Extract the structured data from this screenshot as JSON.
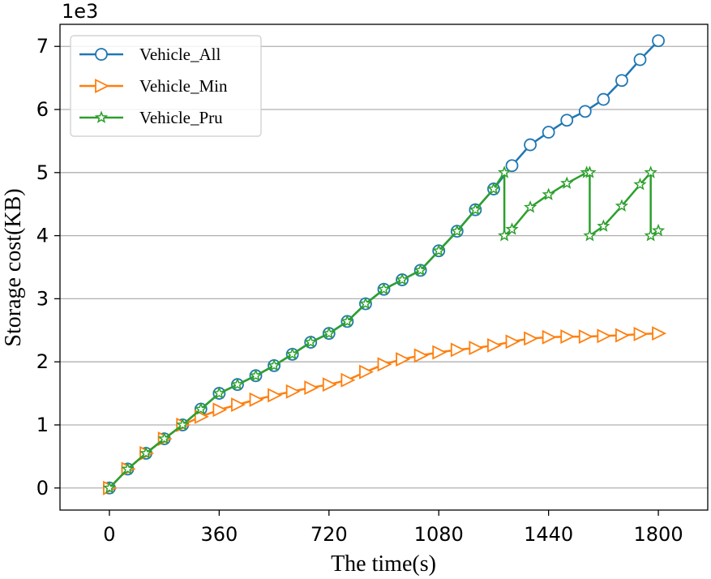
{
  "chart_data": {
    "type": "line",
    "title": "",
    "xlabel": "The time(s)",
    "ylabel": "Storage cost(KB)",
    "y_offset_label": "1e3",
    "xlim": [
      -162,
      1962
    ],
    "ylim": [
      -0.35,
      7.35
    ],
    "x_ticks": [
      0,
      360,
      720,
      1080,
      1440,
      1800
    ],
    "x_tick_labels": [
      "0",
      "360",
      "720",
      "1080",
      "1440",
      "1800"
    ],
    "y_ticks": [
      0,
      1,
      2,
      3,
      4,
      5,
      6,
      7
    ],
    "y_tick_labels": [
      "0",
      "1",
      "2",
      "3",
      "4",
      "5",
      "6",
      "7"
    ],
    "grid": "horizontal",
    "legend_position": "top-left",
    "series": [
      {
        "name": "Vehicle_All",
        "color": "#1f77b4",
        "marker": "circle",
        "x": [
          0,
          60,
          120,
          180,
          240,
          300,
          360,
          420,
          480,
          540,
          600,
          660,
          720,
          780,
          840,
          900,
          960,
          1020,
          1080,
          1140,
          1200,
          1260,
          1320,
          1380,
          1440,
          1500,
          1560,
          1620,
          1680,
          1740,
          1800
        ],
        "y": [
          0,
          0.3,
          0.55,
          0.78,
          1.0,
          1.25,
          1.5,
          1.64,
          1.78,
          1.94,
          2.12,
          2.31,
          2.45,
          2.64,
          2.92,
          3.15,
          3.3,
          3.45,
          3.76,
          4.07,
          4.41,
          4.74,
          5.11,
          5.44,
          5.64,
          5.83,
          5.97,
          6.16,
          6.46,
          6.79,
          7.09
        ]
      },
      {
        "name": "Vehicle_Min",
        "color": "#ff7f0e",
        "marker": "triangle-right",
        "x": [
          0,
          60,
          120,
          180,
          240,
          300,
          360,
          420,
          480,
          540,
          600,
          660,
          720,
          780,
          840,
          900,
          960,
          1020,
          1080,
          1140,
          1200,
          1260,
          1320,
          1380,
          1440,
          1500,
          1560,
          1620,
          1680,
          1740,
          1800
        ],
        "y": [
          0,
          0.3,
          0.55,
          0.78,
          1.0,
          1.13,
          1.24,
          1.32,
          1.4,
          1.47,
          1.53,
          1.59,
          1.64,
          1.71,
          1.84,
          1.96,
          2.04,
          2.1,
          2.15,
          2.19,
          2.22,
          2.26,
          2.32,
          2.37,
          2.39,
          2.4,
          2.4,
          2.41,
          2.42,
          2.44,
          2.45
        ]
      },
      {
        "name": "Vehicle_Pru",
        "color": "#2ca02c",
        "marker": "star",
        "x": [
          0,
          60,
          120,
          180,
          240,
          300,
          360,
          420,
          480,
          540,
          600,
          660,
          720,
          780,
          840,
          900,
          960,
          1020,
          1080,
          1140,
          1200,
          1260,
          1295,
          1295,
          1320,
          1380,
          1440,
          1500,
          1565,
          1575,
          1575,
          1620,
          1680,
          1740,
          1775,
          1775,
          1800
        ],
        "y": [
          0,
          0.3,
          0.55,
          0.78,
          1.0,
          1.25,
          1.5,
          1.64,
          1.78,
          1.94,
          2.12,
          2.31,
          2.45,
          2.64,
          2.92,
          3.15,
          3.3,
          3.45,
          3.76,
          4.07,
          4.41,
          4.74,
          5.0,
          4.0,
          4.1,
          4.45,
          4.65,
          4.83,
          5.0,
          5.0,
          4.0,
          4.15,
          4.47,
          4.81,
          5.0,
          4.0,
          4.08
        ]
      }
    ]
  }
}
